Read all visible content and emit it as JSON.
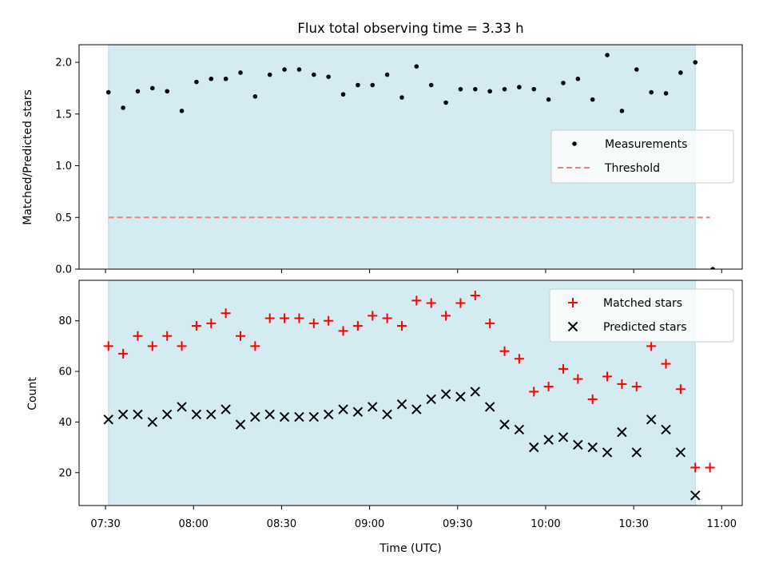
{
  "chart_data": [
    {
      "type": "scatter",
      "title": "Flux total observing time = 3.33 h",
      "ylabel": "Matched/Predicted stars",
      "ylim": [
        0,
        2.17
      ],
      "yticks": [
        "0.0",
        "0.5",
        "1.0",
        "1.5",
        "2.0"
      ],
      "xlim": [
        "07:21",
        "11:07"
      ],
      "shaded_interval": [
        "07:31",
        "10:51"
      ],
      "shade_color": "#d4ebf1",
      "legend_position": "center-right",
      "series": [
        {
          "name": "Measurements",
          "marker": "dot",
          "color": "#000000",
          "x": [
            "07:31",
            "07:36",
            "07:41",
            "07:46",
            "07:51",
            "07:56",
            "08:01",
            "08:06",
            "08:11",
            "08:16",
            "08:21",
            "08:26",
            "08:31",
            "08:36",
            "08:41",
            "08:46",
            "08:51",
            "08:56",
            "09:01",
            "09:06",
            "09:11",
            "09:16",
            "09:21",
            "09:26",
            "09:31",
            "09:36",
            "09:41",
            "09:46",
            "09:51",
            "09:56",
            "10:01",
            "10:06",
            "10:11",
            "10:16",
            "10:21",
            "10:26",
            "10:31",
            "10:36",
            "10:41",
            "10:46",
            "10:51",
            "10:57"
          ],
          "y": [
            1.71,
            1.56,
            1.72,
            1.75,
            1.72,
            1.53,
            1.81,
            1.84,
            1.84,
            1.9,
            1.67,
            1.88,
            1.93,
            1.93,
            1.88,
            1.86,
            1.69,
            1.78,
            1.78,
            1.88,
            1.66,
            1.96,
            1.78,
            1.61,
            1.74,
            1.74,
            1.72,
            1.74,
            1.76,
            1.74,
            1.64,
            1.8,
            1.84,
            1.64,
            2.07,
            1.53,
            1.93,
            1.71,
            1.7,
            1.9,
            2.0,
            0.0
          ]
        },
        {
          "name": "Threshold",
          "marker": "dashed-line",
          "color": "#f08080",
          "x": [
            "07:31",
            "10:56"
          ],
          "y": [
            0.5,
            0.5
          ]
        }
      ]
    },
    {
      "type": "scatter",
      "title": "",
      "xlabel": "Time (UTC)",
      "ylabel": "Count",
      "ylim": [
        7,
        96
      ],
      "yticks": [
        "20",
        "40",
        "60",
        "80"
      ],
      "xticks": [
        "07:30",
        "08:00",
        "08:30",
        "09:00",
        "09:30",
        "10:00",
        "10:30",
        "11:00"
      ],
      "xlim": [
        "07:21",
        "11:07"
      ],
      "shaded_interval": [
        "07:31",
        "10:51"
      ],
      "shade_color": "#d4ebf1",
      "legend_position": "top-right",
      "series": [
        {
          "name": "Matched stars",
          "marker": "plus",
          "color": "#ff0000",
          "x": [
            "07:31",
            "07:36",
            "07:41",
            "07:46",
            "07:51",
            "07:56",
            "08:01",
            "08:06",
            "08:11",
            "08:16",
            "08:21",
            "08:26",
            "08:31",
            "08:36",
            "08:41",
            "08:46",
            "08:51",
            "08:56",
            "09:01",
            "09:06",
            "09:11",
            "09:16",
            "09:21",
            "09:26",
            "09:31",
            "09:36",
            "09:41",
            "09:46",
            "09:51",
            "09:56",
            "10:01",
            "10:06",
            "10:11",
            "10:16",
            "10:21",
            "10:26",
            "10:31",
            "10:36",
            "10:41",
            "10:46",
            "10:51",
            "10:56"
          ],
          "y": [
            70,
            67,
            74,
            70,
            74,
            70,
            78,
            79,
            83,
            74,
            70,
            81,
            81,
            81,
            79,
            80,
            76,
            78,
            82,
            81,
            78,
            88,
            87,
            82,
            87,
            90,
            79,
            68,
            65,
            52,
            54,
            61,
            57,
            49,
            58,
            55,
            54,
            70,
            63,
            53,
            22,
            22
          ]
        },
        {
          "name": "Predicted stars",
          "marker": "x",
          "color": "#000000",
          "x": [
            "07:31",
            "07:36",
            "07:41",
            "07:46",
            "07:51",
            "07:56",
            "08:01",
            "08:06",
            "08:11",
            "08:16",
            "08:21",
            "08:26",
            "08:31",
            "08:36",
            "08:41",
            "08:46",
            "08:51",
            "08:56",
            "09:01",
            "09:06",
            "09:11",
            "09:16",
            "09:21",
            "09:26",
            "09:31",
            "09:36",
            "09:41",
            "09:46",
            "09:51",
            "09:56",
            "10:01",
            "10:06",
            "10:11",
            "10:16",
            "10:21",
            "10:26",
            "10:31",
            "10:36",
            "10:41",
            "10:46",
            "10:51"
          ],
          "y": [
            41,
            43,
            43,
            40,
            43,
            46,
            43,
            43,
            45,
            39,
            42,
            43,
            42,
            42,
            42,
            43,
            45,
            44,
            46,
            43,
            47,
            45,
            49,
            51,
            50,
            52,
            46,
            39,
            37,
            30,
            33,
            34,
            31,
            30,
            28,
            36,
            28,
            41,
            37,
            28,
            11
          ]
        }
      ]
    }
  ]
}
